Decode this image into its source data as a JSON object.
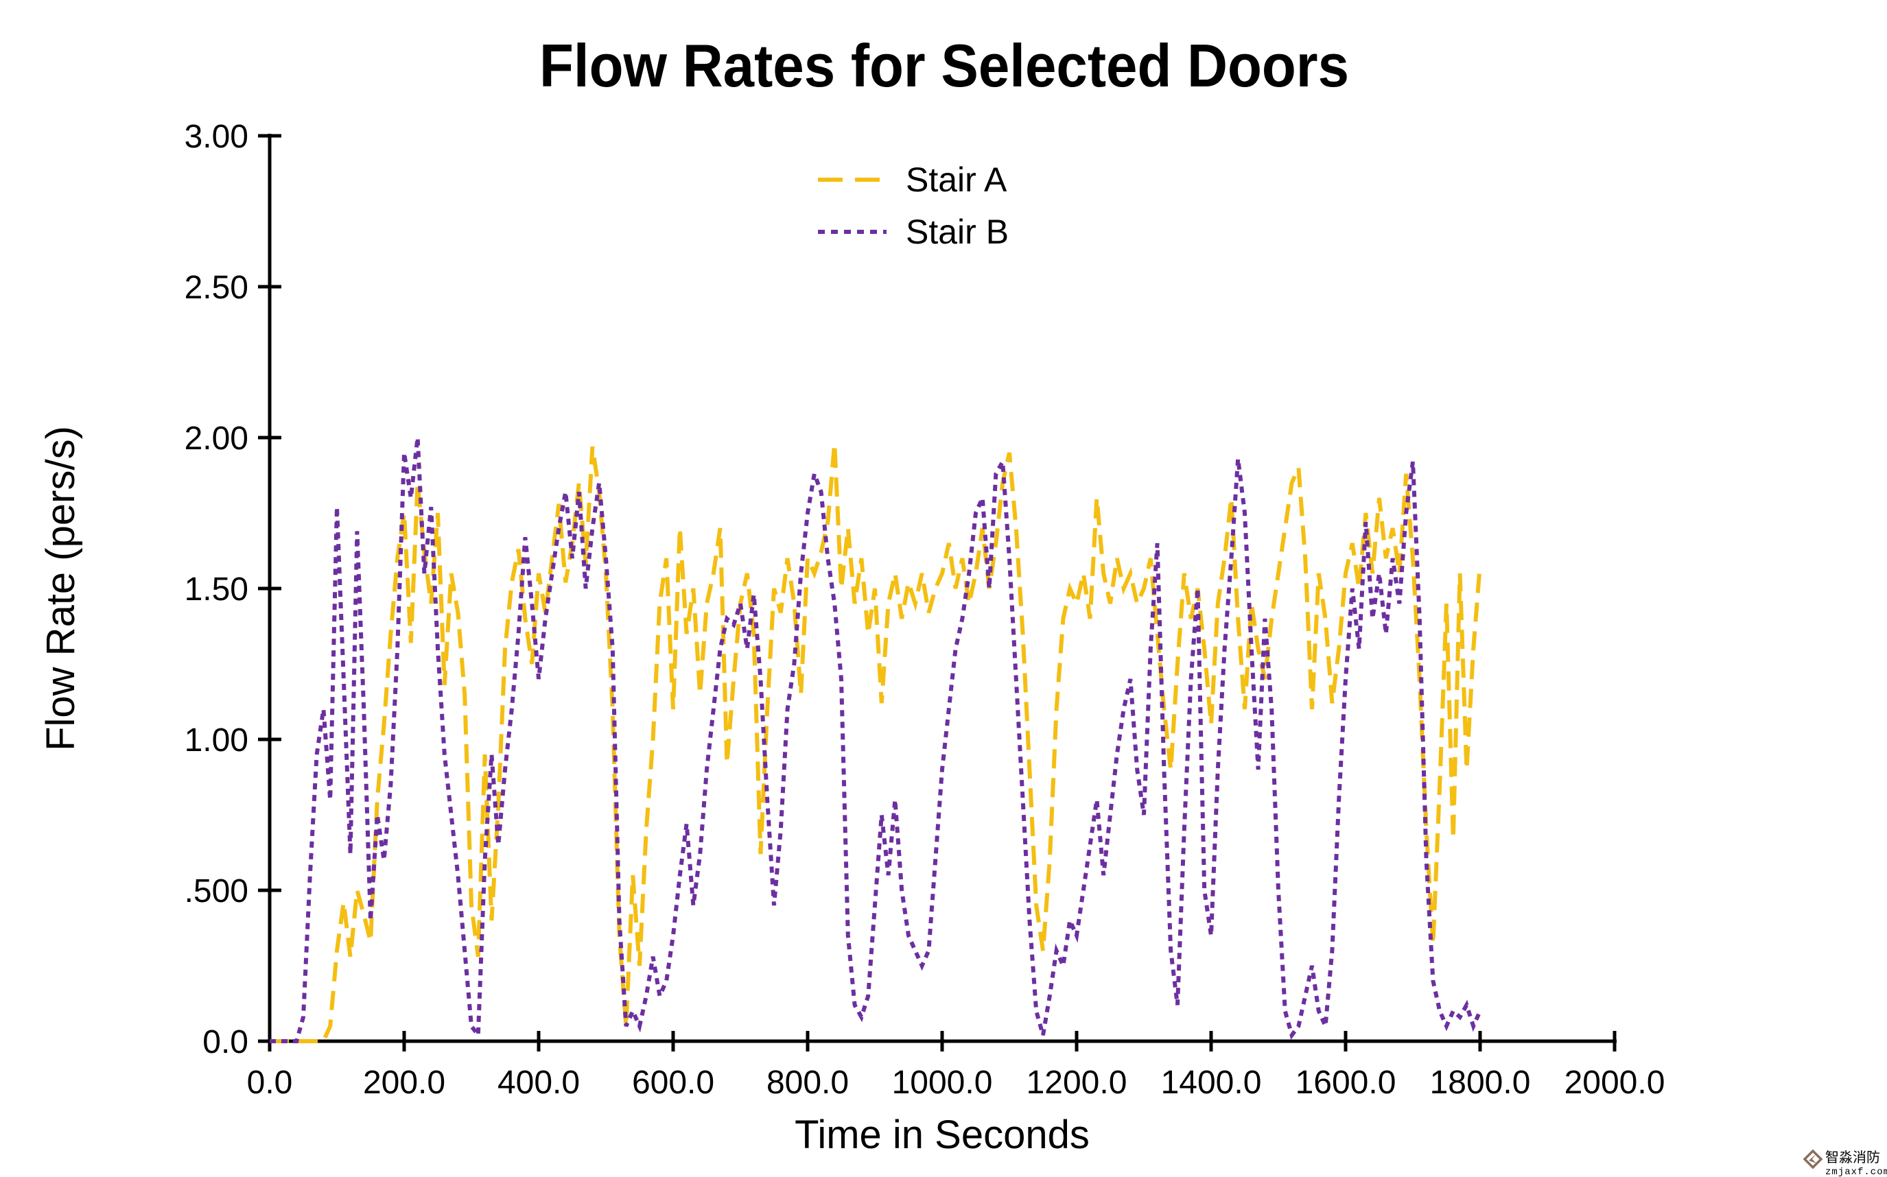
{
  "title": "Flow Rates for Selected Doors",
  "x_axis": {
    "label": "Time in Seconds",
    "ticks": [
      "0.0",
      "200.0",
      "400.0",
      "600.0",
      "800.0",
      "1000.0",
      "1200.0",
      "1400.0",
      "1600.0",
      "1800.0",
      "2000.0"
    ]
  },
  "y_axis": {
    "label": "Flow Rate (pers/s)",
    "ticks": [
      "0.0",
      ".500",
      "1.00",
      "1.50",
      "2.00",
      "2.50",
      "3.00"
    ]
  },
  "legend": [
    {
      "label": "Stair A",
      "color": "#F4BE12",
      "style": "dashed"
    },
    {
      "label": "Stair B",
      "color": "#6C2FA0",
      "style": "dotted"
    }
  ],
  "watermark": {
    "line1": "智淼消防",
    "line2": "zmjaxf.com",
    "color": "#8B6E5B"
  },
  "chart_data": {
    "type": "line",
    "title": "Flow Rates for Selected Doors",
    "xlabel": "Time in Seconds",
    "ylabel": "Flow Rate (pers/s)",
    "xlim": [
      0,
      2000
    ],
    "ylim": [
      0,
      3
    ],
    "x_ticks": [
      0,
      200,
      400,
      600,
      800,
      1000,
      1200,
      1400,
      1600,
      1800,
      2000
    ],
    "y_ticks": [
      0,
      0.5,
      1.0,
      1.5,
      2.0,
      2.5,
      3.0
    ],
    "grid": false,
    "legend_position": "top-center",
    "x_step": 10,
    "series": [
      {
        "name": "Stair A",
        "color": "#F4BE12",
        "style": "dashed",
        "x_start": 0,
        "values": [
          0,
          0,
          0,
          0,
          0,
          0,
          0,
          0,
          0,
          0.05,
          0.3,
          0.46,
          0.28,
          0.5,
          0.42,
          0.33,
          0.8,
          1.05,
          1.35,
          1.6,
          1.75,
          1.32,
          1.85,
          1.62,
          1.45,
          1.75,
          1.18,
          1.55,
          1.42,
          1.15,
          0.45,
          0.28,
          0.95,
          0.4,
          0.78,
          1.3,
          1.52,
          1.63,
          1.4,
          1.25,
          1.55,
          1.42,
          1.6,
          1.78,
          1.52,
          1.65,
          1.85,
          1.58,
          1.97,
          1.82,
          1.55,
          1.1,
          0.35,
          0.05,
          0.55,
          0.25,
          0.7,
          1.0,
          1.45,
          1.6,
          1.1,
          1.7,
          1.35,
          1.5,
          1.15,
          1.45,
          1.55,
          1.7,
          0.92,
          1.2,
          1.45,
          1.55,
          1.35,
          0.62,
          1.1,
          1.5,
          1.42,
          1.6,
          1.45,
          1.15,
          1.6,
          1.55,
          1.62,
          1.72,
          1.98,
          1.5,
          1.7,
          1.45,
          1.6,
          1.35,
          1.5,
          1.12,
          1.45,
          1.55,
          1.4,
          1.52,
          1.45,
          1.55,
          1.42,
          1.5,
          1.55,
          1.65,
          1.5,
          1.6,
          1.45,
          1.55,
          1.7,
          1.5,
          1.65,
          1.85,
          1.95,
          1.7,
          1.35,
          0.9,
          0.45,
          0.3,
          0.6,
          1.1,
          1.4,
          1.5,
          1.45,
          1.55,
          1.4,
          1.8,
          1.55,
          1.45,
          1.6,
          1.5,
          1.55,
          1.45,
          1.5,
          1.6,
          1.35,
          1.1,
          0.9,
          1.25,
          1.55,
          1.4,
          1.5,
          1.3,
          1.05,
          1.45,
          1.6,
          1.8,
          1.4,
          1.1,
          1.45,
          1.3,
          1.2,
          1.4,
          1.55,
          1.7,
          1.85,
          1.9,
          1.6,
          1.1,
          1.55,
          1.4,
          1.12,
          1.3,
          1.55,
          1.65,
          1.5,
          1.75,
          1.55,
          1.8,
          1.6,
          1.7,
          1.55,
          1.88,
          1.6,
          1.2,
          0.7,
          0.32,
          0.85,
          1.45,
          0.67,
          1.55,
          0.9,
          1.3,
          1.58
        ]
      },
      {
        "name": "Stair B",
        "color": "#6C2FA0",
        "style": "dotted",
        "x_start": 0,
        "values": [
          0,
          0,
          0,
          0,
          0,
          0.08,
          0.55,
          0.95,
          1.1,
          0.8,
          1.77,
          1.2,
          0.62,
          1.69,
          1.1,
          0.4,
          0.75,
          0.6,
          0.85,
          1.3,
          1.95,
          1.8,
          2.0,
          1.55,
          1.77,
          1.3,
          0.95,
          0.75,
          0.55,
          0.3,
          0.05,
          0.02,
          0.6,
          0.95,
          0.65,
          0.9,
          1.1,
          1.35,
          1.67,
          1.45,
          1.2,
          1.4,
          1.55,
          1.7,
          1.82,
          1.6,
          1.82,
          1.5,
          1.7,
          1.85,
          1.6,
          1.3,
          0.4,
          0.05,
          0.1,
          0.05,
          0.15,
          0.28,
          0.15,
          0.2,
          0.35,
          0.55,
          0.72,
          0.45,
          0.62,
          0.9,
          1.1,
          1.3,
          1.4,
          1.38,
          1.45,
          1.3,
          1.48,
          1.2,
          0.8,
          0.45,
          0.7,
          1.1,
          1.25,
          1.55,
          1.75,
          1.88,
          1.82,
          1.6,
          1.45,
          1.2,
          0.35,
          0.12,
          0.08,
          0.15,
          0.45,
          0.75,
          0.55,
          0.8,
          0.5,
          0.35,
          0.3,
          0.25,
          0.3,
          0.6,
          0.9,
          1.1,
          1.3,
          1.4,
          1.55,
          1.75,
          1.8,
          1.5,
          1.88,
          1.92,
          1.6,
          1.2,
          0.8,
          0.4,
          0.1,
          0.02,
          0.15,
          0.3,
          0.25,
          0.4,
          0.35,
          0.5,
          0.65,
          0.8,
          0.55,
          0.75,
          0.95,
          1.1,
          1.2,
          0.9,
          0.75,
          1.3,
          1.65,
          0.9,
          0.3,
          0.12,
          0.7,
          1.2,
          1.5,
          0.5,
          0.35,
          0.9,
          1.3,
          1.6,
          1.93,
          1.75,
          1.3,
          0.9,
          1.4,
          1.1,
          0.5,
          0.1,
          0.02,
          0.05,
          0.15,
          0.25,
          0.1,
          0.05,
          0.3,
          0.8,
          1.2,
          1.5,
          1.3,
          1.72,
          1.4,
          1.55,
          1.35,
          1.6,
          1.45,
          1.75,
          1.92,
          1.4,
          0.6,
          0.2,
          0.1,
          0.05,
          0.1,
          0.08,
          0.12,
          0.05,
          0.1
        ]
      }
    ]
  }
}
